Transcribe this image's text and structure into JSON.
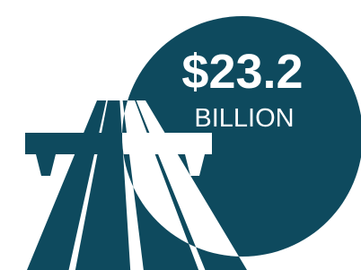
{
  "figure": {
    "amount": "$23.2",
    "unit": "BILLION"
  }
}
